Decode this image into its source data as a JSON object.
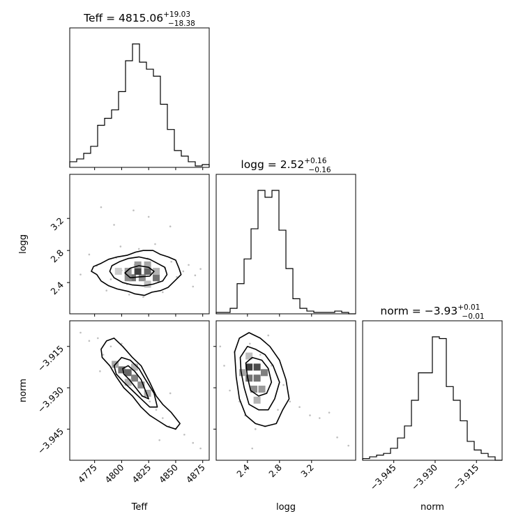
{
  "chart_data": {
    "type": "corner",
    "parameters": [
      "Teff",
      "logg",
      "norm"
    ],
    "axes_labels": {
      "x": [
        "Teff",
        "logg",
        "norm"
      ],
      "y": [
        "logg",
        "norm"
      ]
    },
    "ticks": {
      "Teff": {
        "range": [
          4752,
          4881
        ],
        "values": [
          4775,
          4800,
          4825,
          4850,
          4875
        ],
        "labels": [
          "4775",
          "4800",
          "4825",
          "4850",
          "4875"
        ]
      },
      "logg": {
        "range": [
          2.01,
          3.75
        ],
        "values": [
          2.4,
          2.8,
          3.2
        ],
        "labels": [
          "2.4",
          "2.8",
          "3.2"
        ]
      },
      "norm": {
        "range": [
          -3.9563,
          -3.9057
        ],
        "values": [
          -3.945,
          -3.93,
          -3.915
        ],
        "labels": [
          "−3.945",
          "−3.930",
          "−3.915"
        ]
      }
    },
    "titles": [
      {
        "param": "Teff",
        "prefix": "Teff = ",
        "value": "4815.06",
        "plus": "+19.03",
        "minus": "−18.38"
      },
      {
        "param": "logg",
        "prefix": "logg = ",
        "value": "2.52",
        "plus": "+0.16",
        "minus": "−0.16"
      },
      {
        "param": "norm",
        "prefix": "norm = ",
        "value": "−3.93",
        "plus": "+0.01",
        "minus": "−0.01"
      }
    ],
    "hist_Teff": {
      "edges": [
        4752,
        4758.45,
        4764.9,
        4771.35,
        4777.8,
        4784.25,
        4790.7,
        4797.15,
        4803.6,
        4810.05,
        4816.5,
        4822.95,
        4829.4,
        4835.85,
        4842.3,
        4848.75,
        4855.2,
        4861.65,
        4868.1,
        4874.55,
        4881
      ],
      "counts": [
        4,
        6,
        10,
        15,
        30,
        35,
        41,
        54,
        76,
        88,
        75,
        70,
        65,
        45,
        27,
        12,
        8,
        4,
        1,
        2
      ]
    },
    "hist_logg": {
      "edges": [
        2.01,
        2.097,
        2.184,
        2.271,
        2.358,
        2.445,
        2.532,
        2.619,
        2.706,
        2.793,
        2.88,
        2.967,
        3.054,
        3.141,
        3.228,
        3.315,
        3.402,
        3.489,
        3.576,
        3.663,
        3.75
      ],
      "counts": [
        1,
        1,
        4,
        22,
        40,
        62,
        90,
        85,
        90,
        61,
        33,
        11,
        4,
        2,
        1,
        1,
        1,
        2,
        1,
        0
      ]
    },
    "hist_norm": {
      "edges": [
        -3.9563,
        -3.95377,
        -3.95124,
        -3.94871,
        -3.94618,
        -3.94365,
        -3.94112,
        -3.93859,
        -3.93606,
        -3.93353,
        -3.931,
        -3.92847,
        -3.92594,
        -3.92341,
        -3.92088,
        -3.91835,
        -3.91582,
        -3.91329,
        -3.91076,
        -3.90823,
        -3.9057
      ],
      "counts": [
        1,
        2,
        3,
        4,
        7,
        13,
        20,
        35,
        51,
        51,
        72,
        71,
        43,
        35,
        23,
        11,
        6,
        4,
        2,
        0
      ]
    },
    "scatter_logg_vs_Teff": {
      "points": [
        [
          4777,
          2.61
        ],
        [
          4762,
          2.5
        ],
        [
          4790,
          2.44
        ],
        [
          4795,
          2.71
        ],
        [
          4800,
          2.55
        ],
        [
          4805,
          2.38
        ],
        [
          4812,
          2.62
        ],
        [
          4818,
          2.46
        ],
        [
          4824,
          2.7
        ],
        [
          4828,
          2.52
        ],
        [
          4834,
          2.41
        ],
        [
          4840,
          2.58
        ],
        [
          4846,
          2.66
        ],
        [
          4851,
          2.47
        ],
        [
          4857,
          2.54
        ],
        [
          4862,
          2.62
        ],
        [
          4868,
          2.49
        ],
        [
          4873,
          2.57
        ],
        [
          4786,
          2.3
        ],
        [
          4807,
          2.25
        ],
        [
          4820,
          2.22
        ],
        [
          4838,
          2.28
        ],
        [
          4799,
          2.85
        ],
        [
          4816,
          2.82
        ],
        [
          4831,
          2.88
        ],
        [
          4793,
          3.12
        ],
        [
          4825,
          3.22
        ],
        [
          4811,
          3.3
        ],
        [
          4781,
          3.34
        ],
        [
          4845,
          3.1
        ],
        [
          4770,
          2.75
        ],
        [
          4866,
          2.35
        ]
      ],
      "density": [
        {
          "x": 4810,
          "y": 2.46,
          "w": 0.55
        },
        {
          "x": 4819,
          "y": 2.46,
          "w": 0.45
        },
        {
          "x": 4815,
          "y": 2.54,
          "w": 0.75
        },
        {
          "x": 4824,
          "y": 2.54,
          "w": 0.6
        },
        {
          "x": 4806,
          "y": 2.54,
          "w": 0.4
        },
        {
          "x": 4815,
          "y": 2.62,
          "w": 0.4
        },
        {
          "x": 4824,
          "y": 2.62,
          "w": 0.35
        },
        {
          "x": 4832,
          "y": 2.46,
          "w": 0.55
        },
        {
          "x": 4806,
          "y": 2.46,
          "w": 0.45
        },
        {
          "x": 4824,
          "y": 2.38,
          "w": 0.25
        },
        {
          "x": 4797,
          "y": 2.54,
          "w": 0.2
        },
        {
          "x": 4832,
          "y": 2.54,
          "w": 0.3
        }
      ],
      "contours": [
        [
          [
            4772,
            2.54
          ],
          [
            4777,
            2.5
          ],
          [
            4781,
            2.42
          ],
          [
            4788,
            2.36
          ],
          [
            4796,
            2.32
          ],
          [
            4806,
            2.29
          ],
          [
            4812,
            2.26
          ],
          [
            4821,
            2.24
          ],
          [
            4828,
            2.28
          ],
          [
            4836,
            2.3
          ],
          [
            4843,
            2.34
          ],
          [
            4849,
            2.42
          ],
          [
            4855,
            2.5
          ],
          [
            4853,
            2.58
          ],
          [
            4850,
            2.68
          ],
          [
            4843,
            2.72
          ],
          [
            4836,
            2.75
          ],
          [
            4829,
            2.8
          ],
          [
            4820,
            2.8
          ],
          [
            4813,
            2.78
          ],
          [
            4805,
            2.74
          ],
          [
            4796,
            2.72
          ],
          [
            4788,
            2.69
          ],
          [
            4781,
            2.64
          ],
          [
            4774,
            2.6
          ],
          [
            4772,
            2.54
          ]
        ],
        [
          [
            4789,
            2.54
          ],
          [
            4793,
            2.46
          ],
          [
            4801,
            2.4
          ],
          [
            4810,
            2.37
          ],
          [
            4820,
            2.36
          ],
          [
            4829,
            2.38
          ],
          [
            4838,
            2.42
          ],
          [
            4842,
            2.5
          ],
          [
            4840,
            2.59
          ],
          [
            4833,
            2.64
          ],
          [
            4826,
            2.69
          ],
          [
            4816,
            2.72
          ],
          [
            4806,
            2.7
          ],
          [
            4798,
            2.66
          ],
          [
            4791,
            2.61
          ],
          [
            4789,
            2.54
          ]
        ],
        [
          [
            4803,
            2.52
          ],
          [
            4808,
            2.46
          ],
          [
            4816,
            2.47
          ],
          [
            4826,
            2.48
          ],
          [
            4830,
            2.54
          ],
          [
            4825,
            2.59
          ],
          [
            4816,
            2.61
          ],
          [
            4808,
            2.58
          ],
          [
            4803,
            2.52
          ]
        ]
      ]
    },
    "scatter_norm_vs_Teff": {
      "points": [
        [
          4762,
          -3.91
        ],
        [
          4770,
          -3.913
        ],
        [
          4778,
          -3.912
        ],
        [
          4783,
          -3.918
        ],
        [
          4790,
          -3.915
        ],
        [
          4795,
          -3.921
        ],
        [
          4802,
          -3.924
        ],
        [
          4808,
          -3.929
        ],
        [
          4813,
          -3.927
        ],
        [
          4819,
          -3.933
        ],
        [
          4826,
          -3.935
        ],
        [
          4832,
          -3.938
        ],
        [
          4838,
          -3.941
        ],
        [
          4844,
          -3.944
        ],
        [
          4850,
          -3.945
        ],
        [
          4858,
          -3.947
        ],
        [
          4866,
          -3.95
        ],
        [
          4873,
          -3.952
        ],
        [
          4780,
          -3.924
        ],
        [
          4845,
          -3.932
        ],
        [
          4800,
          -3.914
        ],
        [
          4835,
          -3.949
        ]
      ],
      "density": [
        {
          "x": 4800,
          "y": -3.9235,
          "w": 0.55
        },
        {
          "x": 4806,
          "y": -3.9245,
          "w": 0.6
        },
        {
          "x": 4812,
          "y": -3.9265,
          "w": 0.5
        },
        {
          "x": 4818,
          "y": -3.929,
          "w": 0.45
        },
        {
          "x": 4824,
          "y": -3.932,
          "w": 0.35
        },
        {
          "x": 4794,
          "y": -3.9215,
          "w": 0.35
        },
        {
          "x": 4812,
          "y": -3.9225,
          "w": 0.3
        },
        {
          "x": 4806,
          "y": -3.928,
          "w": 0.3
        }
      ],
      "contours": [
        [
          [
            4781,
            -3.916
          ],
          [
            4786,
            -3.913
          ],
          [
            4793,
            -3.912
          ],
          [
            4801,
            -3.915
          ],
          [
            4810,
            -3.919
          ],
          [
            4818,
            -3.922
          ],
          [
            4826,
            -3.928
          ],
          [
            4832,
            -3.933
          ],
          [
            4838,
            -3.936
          ],
          [
            4846,
            -3.939
          ],
          [
            4854,
            -3.943
          ],
          [
            4850,
            -3.945
          ],
          [
            4842,
            -3.944
          ],
          [
            4834,
            -3.942
          ],
          [
            4826,
            -3.94
          ],
          [
            4818,
            -3.937
          ],
          [
            4810,
            -3.933
          ],
          [
            4802,
            -3.93
          ],
          [
            4795,
            -3.926
          ],
          [
            4789,
            -3.922
          ],
          [
            4782,
            -3.919
          ],
          [
            4781,
            -3.916
          ]
        ],
        [
          [
            4793,
            -3.922
          ],
          [
            4800,
            -3.919
          ],
          [
            4808,
            -3.92
          ],
          [
            4816,
            -3.923
          ],
          [
            4822,
            -3.927
          ],
          [
            4830,
            -3.932
          ],
          [
            4833,
            -3.937
          ],
          [
            4826,
            -3.937
          ],
          [
            4818,
            -3.934
          ],
          [
            4810,
            -3.931
          ],
          [
            4802,
            -3.928
          ],
          [
            4795,
            -3.925
          ],
          [
            4793,
            -3.922
          ]
        ],
        [
          [
            4801,
            -3.923
          ],
          [
            4806,
            -3.922
          ],
          [
            4812,
            -3.924
          ],
          [
            4818,
            -3.927
          ],
          [
            4822,
            -3.931
          ],
          [
            4825,
            -3.934
          ],
          [
            4819,
            -3.933
          ],
          [
            4813,
            -3.93
          ],
          [
            4807,
            -3.927
          ],
          [
            4802,
            -3.925
          ],
          [
            4801,
            -3.923
          ]
        ]
      ]
    },
    "scatter_norm_vs_logg": {
      "points": [
        [
          2.06,
          -3.915
        ],
        [
          2.11,
          -3.922
        ],
        [
          2.18,
          -3.931
        ],
        [
          2.24,
          -3.917
        ],
        [
          2.3,
          -3.935
        ],
        [
          2.37,
          -3.94
        ],
        [
          2.43,
          -3.914
        ],
        [
          2.5,
          -3.945
        ],
        [
          2.56,
          -3.918
        ],
        [
          2.62,
          -3.944
        ],
        [
          2.7,
          -3.922
        ],
        [
          2.78,
          -3.938
        ],
        [
          2.85,
          -3.929
        ],
        [
          2.93,
          -3.935
        ],
        [
          3.05,
          -3.937
        ],
        [
          3.18,
          -3.94
        ],
        [
          3.3,
          -3.941
        ],
        [
          3.42,
          -3.939
        ],
        [
          3.52,
          -3.948
        ],
        [
          3.66,
          -3.951
        ],
        [
          2.46,
          -3.952
        ],
        [
          2.66,
          -3.911
        ]
      ],
      "density": [
        {
          "x": 2.42,
          "y": -3.9225,
          "w": 0.75
        },
        {
          "x": 2.52,
          "y": -3.9225,
          "w": 0.7
        },
        {
          "x": 2.42,
          "y": -3.9265,
          "w": 0.55
        },
        {
          "x": 2.52,
          "y": -3.9265,
          "w": 0.55
        },
        {
          "x": 2.61,
          "y": -3.9245,
          "w": 0.5
        },
        {
          "x": 2.48,
          "y": -3.9305,
          "w": 0.45
        },
        {
          "x": 2.58,
          "y": -3.9305,
          "w": 0.4
        },
        {
          "x": 2.34,
          "y": -3.9245,
          "w": 0.35
        },
        {
          "x": 2.52,
          "y": -3.9345,
          "w": 0.3
        },
        {
          "x": 2.42,
          "y": -3.9185,
          "w": 0.25
        }
      ],
      "contours": [
        [
          [
            2.24,
            -3.917
          ],
          [
            2.3,
            -3.912
          ],
          [
            2.42,
            -3.91
          ],
          [
            2.56,
            -3.912
          ],
          [
            2.68,
            -3.915
          ],
          [
            2.8,
            -3.92
          ],
          [
            2.88,
            -3.927
          ],
          [
            2.92,
            -3.934
          ],
          [
            2.84,
            -3.938
          ],
          [
            2.76,
            -3.943
          ],
          [
            2.62,
            -3.944
          ],
          [
            2.5,
            -3.943
          ],
          [
            2.38,
            -3.94
          ],
          [
            2.3,
            -3.934
          ],
          [
            2.26,
            -3.926
          ],
          [
            2.24,
            -3.917
          ]
        ],
        [
          [
            2.31,
            -3.919
          ],
          [
            2.4,
            -3.915
          ],
          [
            2.5,
            -3.916
          ],
          [
            2.62,
            -3.918
          ],
          [
            2.72,
            -3.922
          ],
          [
            2.8,
            -3.928
          ],
          [
            2.74,
            -3.934
          ],
          [
            2.66,
            -3.938
          ],
          [
            2.54,
            -3.938
          ],
          [
            2.42,
            -3.936
          ],
          [
            2.36,
            -3.93
          ],
          [
            2.32,
            -3.924
          ],
          [
            2.31,
            -3.919
          ]
        ],
        [
          [
            2.38,
            -3.921
          ],
          [
            2.46,
            -3.919
          ],
          [
            2.58,
            -3.92
          ],
          [
            2.66,
            -3.923
          ],
          [
            2.7,
            -3.928
          ],
          [
            2.64,
            -3.932
          ],
          [
            2.54,
            -3.933
          ],
          [
            2.44,
            -3.931
          ],
          [
            2.4,
            -3.926
          ],
          [
            2.38,
            -3.921
          ]
        ]
      ]
    }
  }
}
